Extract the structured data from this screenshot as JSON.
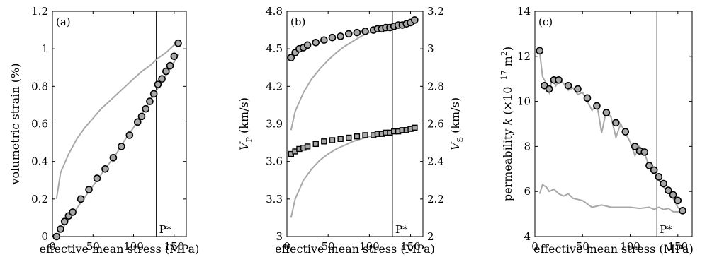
{
  "chart_data": [
    {
      "type": "scatter",
      "panel_label": "(a)",
      "xlabel": "effective mean stress (MPa)",
      "ylabel": "volumetric strain (%)",
      "xlim": [
        0,
        165
      ],
      "ylim": [
        0,
        1.2
      ],
      "xticks": [
        0,
        50,
        100,
        150
      ],
      "yticks": [
        0,
        0.2,
        0.4,
        0.6,
        0.8,
        1,
        1.2
      ],
      "ytick_labels": [
        "0",
        "0.2",
        "0.4",
        "0.6",
        "0.8",
        "1",
        "1.2"
      ],
      "marker_line": {
        "x": 128,
        "label": "P*"
      },
      "grid": false,
      "series": [
        {
          "style": "gray-line",
          "x": [
            5,
            10,
            20,
            30,
            40,
            50,
            60,
            70,
            80,
            90,
            100,
            110,
            120,
            130,
            140,
            150,
            155
          ],
          "y": [
            0.2,
            0.34,
            0.44,
            0.52,
            0.58,
            0.63,
            0.68,
            0.72,
            0.76,
            0.8,
            0.84,
            0.88,
            0.91,
            0.95,
            0.98,
            1.02,
            1.02
          ]
        },
        {
          "style": "gray-line",
          "x": [
            5,
            10,
            20,
            30,
            40,
            50,
            60,
            70,
            80,
            90,
            100,
            110,
            120,
            130,
            140,
            150,
            155
          ],
          "y": [
            0.0,
            0.03,
            0.09,
            0.15,
            0.21,
            0.27,
            0.33,
            0.39,
            0.45,
            0.52,
            0.58,
            0.65,
            0.72,
            0.79,
            0.86,
            0.93,
            0.97
          ]
        },
        {
          "style": "circle",
          "x": [
            5,
            10,
            15,
            20,
            25,
            35,
            45,
            55,
            65,
            75,
            85,
            95,
            105,
            110,
            115,
            120,
            125,
            130,
            135,
            140,
            145,
            150,
            155
          ],
          "y": [
            0.0,
            0.04,
            0.08,
            0.11,
            0.13,
            0.2,
            0.25,
            0.31,
            0.36,
            0.42,
            0.48,
            0.54,
            0.61,
            0.64,
            0.68,
            0.72,
            0.76,
            0.81,
            0.84,
            0.88,
            0.91,
            0.96,
            1.03
          ]
        }
      ]
    },
    {
      "type": "scatter",
      "panel_label": "(b)",
      "xlabel": "effective mean stress (MPa)",
      "ylabel": "V_P (km/s)",
      "ylabel_right": "V_S (km/s)",
      "xlim": [
        0,
        165
      ],
      "ylim": [
        3.0,
        4.8
      ],
      "ylim_right": [
        2.0,
        3.2
      ],
      "xticks": [
        0,
        50,
        100,
        150
      ],
      "yticks": [
        3,
        3.3,
        3.6,
        3.9,
        4.2,
        4.5,
        4.8
      ],
      "ytick_labels": [
        "3",
        "3.3",
        "3.6",
        "3.9",
        "4.2",
        "4.5",
        "4.8"
      ],
      "yticks_right": [
        2,
        2.2,
        2.4,
        2.6,
        2.8,
        3,
        3.2
      ],
      "ytick_labels_right": [
        "2",
        "2.2",
        "2.4",
        "2.6",
        "2.8",
        "3",
        "3.2"
      ],
      "marker_line": {
        "x": 128,
        "label": "P*"
      },
      "grid": false,
      "series": [
        {
          "style": "gray-line",
          "axis": "left",
          "x": [
            5,
            10,
            20,
            30,
            40,
            50,
            60,
            70,
            80,
            90,
            100,
            110,
            120,
            130,
            140,
            150,
            155
          ],
          "y": [
            3.85,
            4.0,
            4.15,
            4.26,
            4.34,
            4.41,
            4.47,
            4.52,
            4.56,
            4.6,
            4.63,
            4.65,
            4.67,
            4.69,
            4.7,
            4.71,
            4.71
          ]
        },
        {
          "style": "circle",
          "axis": "left",
          "x": [
            5,
            10,
            15,
            20,
            25,
            35,
            45,
            55,
            65,
            75,
            85,
            95,
            105,
            110,
            115,
            120,
            125,
            130,
            135,
            140,
            145,
            150,
            155
          ],
          "y": [
            4.43,
            4.47,
            4.5,
            4.51,
            4.53,
            4.55,
            4.57,
            4.59,
            4.6,
            4.62,
            4.63,
            4.64,
            4.65,
            4.66,
            4.66,
            4.67,
            4.67,
            4.68,
            4.69,
            4.69,
            4.7,
            4.71,
            4.73
          ]
        },
        {
          "style": "gray-line",
          "axis": "left",
          "x": [
            5,
            10,
            20,
            30,
            40,
            50,
            60,
            70,
            80,
            90,
            100,
            110,
            120,
            130,
            140,
            150,
            155
          ],
          "y": [
            3.15,
            3.3,
            3.45,
            3.54,
            3.61,
            3.66,
            3.7,
            3.73,
            3.76,
            3.78,
            3.8,
            3.81,
            3.82,
            3.83,
            3.84,
            3.85,
            3.85
          ]
        },
        {
          "style": "square",
          "axis": "left",
          "x": [
            5,
            10,
            15,
            20,
            25,
            35,
            45,
            55,
            65,
            75,
            85,
            95,
            105,
            110,
            115,
            120,
            125,
            130,
            135,
            140,
            145,
            150,
            155
          ],
          "y": [
            3.66,
            3.68,
            3.7,
            3.71,
            3.72,
            3.74,
            3.76,
            3.77,
            3.78,
            3.79,
            3.8,
            3.81,
            3.81,
            3.82,
            3.82,
            3.83,
            3.83,
            3.84,
            3.84,
            3.85,
            3.85,
            3.86,
            3.87
          ]
        }
      ]
    },
    {
      "type": "scatter",
      "panel_label": "(c)",
      "xlabel": "effective mean stress (MPa)",
      "ylabel": "permeability k (×10⁻¹⁷ m²)",
      "xlim": [
        0,
        165
      ],
      "ylim": [
        4,
        14
      ],
      "xticks": [
        0,
        50,
        100,
        150
      ],
      "yticks": [
        4,
        6,
        8,
        10,
        12,
        14
      ],
      "ytick_labels": [
        "4",
        "6",
        "8",
        "10",
        "12",
        "14"
      ],
      "marker_line": {
        "x": 128,
        "label": "P*"
      },
      "grid": false,
      "series": [
        {
          "style": "gray-line",
          "x": [
            5,
            8,
            12,
            15,
            18,
            22,
            26,
            30,
            35,
            40,
            45,
            50,
            55,
            60,
            65,
            70,
            75,
            80,
            85,
            90,
            95,
            100,
            105,
            110,
            115,
            120,
            125,
            130,
            135,
            140,
            145,
            150,
            155
          ],
          "y": [
            12.2,
            11.1,
            10.8,
            10.4,
            11.0,
            10.7,
            11.0,
            10.8,
            10.5,
            10.6,
            10.3,
            10.4,
            10.0,
            9.6,
            9.9,
            8.6,
            9.6,
            9.3,
            8.4,
            9.0,
            8.6,
            8.2,
            7.6,
            8.0,
            7.7,
            7.1,
            6.9,
            6.5,
            6.2,
            6.0,
            5.7,
            5.3,
            5.1
          ]
        },
        {
          "style": "gray-line",
          "x": [
            5,
            8,
            12,
            15,
            20,
            25,
            30,
            35,
            40,
            50,
            60,
            70,
            80,
            90,
            100,
            110,
            120,
            125,
            130,
            135,
            140,
            145,
            150,
            155
          ],
          "y": [
            5.9,
            6.3,
            6.2,
            6.0,
            6.1,
            5.9,
            5.8,
            5.9,
            5.7,
            5.6,
            5.3,
            5.4,
            5.3,
            5.3,
            5.3,
            5.25,
            5.3,
            5.2,
            5.3,
            5.2,
            5.25,
            5.1,
            5.1,
            5.15
          ]
        },
        {
          "style": "circle",
          "x": [
            5,
            10,
            15,
            20,
            25,
            35,
            45,
            55,
            65,
            75,
            85,
            95,
            105,
            110,
            115,
            120,
            125,
            130,
            135,
            140,
            145,
            150,
            155
          ],
          "y": [
            12.25,
            10.7,
            10.55,
            10.95,
            10.95,
            10.7,
            10.55,
            10.15,
            9.8,
            9.5,
            9.05,
            8.65,
            8.0,
            7.8,
            7.75,
            7.15,
            6.95,
            6.65,
            6.35,
            6.05,
            5.85,
            5.6,
            5.15
          ]
        }
      ]
    }
  ]
}
